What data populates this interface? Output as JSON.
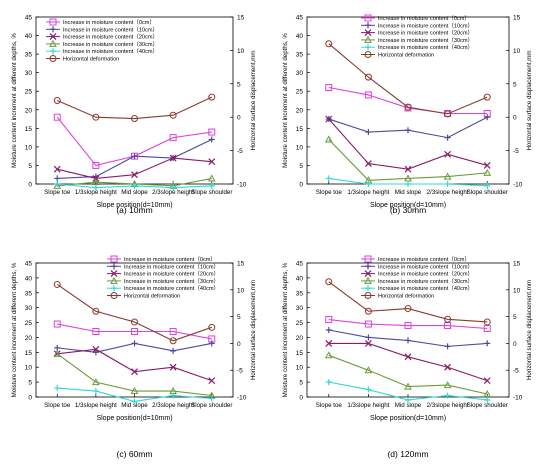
{
  "figure": {
    "series_style": [
      {
        "color": "#e040e0",
        "marker": "square"
      },
      {
        "color": "#4a4a9e",
        "marker": "cross"
      },
      {
        "color": "#8a1a6a",
        "marker": "x"
      },
      {
        "color": "#6a9a3a",
        "marker": "triangle"
      },
      {
        "color": "#30d8d8",
        "marker": "cross"
      },
      {
        "color": "#8a3a2a",
        "marker": "circle"
      }
    ]
  },
  "chart_data": [
    {
      "type": "line",
      "caption": "(a) 10mm",
      "xlabel": "Slope position(d=10mm)",
      "ylabel": "Moisture content increment at different depths, %",
      "y2label": "Horizontal surface displacement,mm",
      "categories": [
        "Slope toe",
        "1/3slope height",
        "Mid slope",
        "2/3slope height",
        "Slope shoulder"
      ],
      "ylim": [
        0,
        45
      ],
      "yticks": [
        0,
        5,
        10,
        15,
        20,
        25,
        30,
        35,
        40,
        45
      ],
      "y2lim": [
        -10,
        15
      ],
      "y2ticks": [
        -10,
        -5,
        0,
        5,
        10,
        15
      ],
      "legend_position": "top-left",
      "series": [
        {
          "name": "Increase in moisture content（0cm）",
          "axis": "left",
          "values": [
            18,
            5,
            7.5,
            12.5,
            14
          ]
        },
        {
          "name": "Increase in moisture content（10cm）",
          "axis": "left",
          "values": [
            1.5,
            2,
            7.5,
            7,
            12
          ]
        },
        {
          "name": "Increase in moisture content（20cm）",
          "axis": "left",
          "values": [
            4,
            1.5,
            2.5,
            7,
            6
          ]
        },
        {
          "name": "Increase in moisture content（30cm）",
          "axis": "left",
          "values": [
            -0.5,
            0.5,
            0,
            -0.5,
            1.5
          ]
        },
        {
          "name": "Increase in moisture content（40cm）",
          "axis": "left",
          "values": [
            0,
            -1,
            -0.5,
            -1,
            -0.5
          ]
        },
        {
          "name": "Horizontal deformation",
          "axis": "right",
          "values": [
            2.5,
            0,
            -0.2,
            0.3,
            3
          ]
        }
      ]
    },
    {
      "type": "line",
      "caption": "(b) 30mm",
      "xlabel": "Slope position(d=10mm)",
      "ylabel": "Moisture content increment at different depths, %",
      "y2label": "Horizontal surface displacement,mm",
      "categories": [
        "Slope toe",
        "1/3slope height",
        "Mid slope",
        "2/3slope height",
        "Slope shoulder"
      ],
      "ylim": [
        0,
        45
      ],
      "yticks": [
        0,
        5,
        10,
        15,
        20,
        25,
        30,
        35,
        40,
        45
      ],
      "y2lim": [
        -10,
        15
      ],
      "y2ticks": [
        -10,
        -5,
        0,
        5,
        10,
        15
      ],
      "legend_position": "top-right",
      "series": [
        {
          "name": "Increase in moisture content（0cm）",
          "axis": "left",
          "values": [
            26,
            24,
            20.5,
            19,
            19
          ]
        },
        {
          "name": "Increase in moisture content（10cm）",
          "axis": "left",
          "values": [
            17.5,
            14,
            14.5,
            12.5,
            18
          ]
        },
        {
          "name": "Increase in moisture content（20cm）",
          "axis": "left",
          "values": [
            17.5,
            5.5,
            4,
            8,
            5
          ]
        },
        {
          "name": "Increase in moisture content（30cm）",
          "axis": "left",
          "values": [
            12,
            1,
            1.5,
            2,
            3
          ]
        },
        {
          "name": "Increase in moisture content（40cm）",
          "axis": "left",
          "values": [
            1.5,
            0,
            0,
            0,
            -0.5
          ]
        },
        {
          "name": "Horizontal deformation",
          "axis": "right",
          "values": [
            11,
            6,
            1.5,
            0.5,
            3
          ]
        }
      ]
    },
    {
      "type": "line",
      "caption": "(c) 60mm",
      "xlabel": "Slope position(d=10mm)",
      "ylabel": "Moisture content increment at different depths, %",
      "y2label": "Horizontal surface displacement,mm",
      "categories": [
        "Slope toe",
        "1/3slope height",
        "Mid slope",
        "2/3slope height",
        "Slope shoulder"
      ],
      "ylim": [
        0,
        45
      ],
      "yticks": [
        0,
        5,
        10,
        15,
        20,
        25,
        30,
        35,
        40,
        45
      ],
      "y2lim": [
        -10,
        15
      ],
      "y2ticks": [
        -10,
        -5,
        0,
        5,
        10,
        15
      ],
      "legend_position": "top-right",
      "series": [
        {
          "name": "Increase in moisture content（0cm）",
          "axis": "left",
          "values": [
            24.5,
            22,
            22,
            22,
            19.5
          ]
        },
        {
          "name": "Increase in moisture content（10cm）",
          "axis": "left",
          "values": [
            16.5,
            15,
            18,
            15.5,
            18
          ]
        },
        {
          "name": "Increase in moisture content（20cm）",
          "axis": "left",
          "values": [
            14.5,
            16,
            8.5,
            10,
            5.5
          ]
        },
        {
          "name": "Increase in moisture content（30cm）",
          "axis": "left",
          "values": [
            14.5,
            5,
            2,
            2,
            0.5
          ]
        },
        {
          "name": "Increase in moisture content（40cm）",
          "axis": "left",
          "values": [
            3,
            2,
            -1.5,
            0.5,
            -0.5
          ]
        },
        {
          "name": "Horizontal deformation",
          "axis": "right",
          "values": [
            11,
            6,
            4,
            0.5,
            3
          ]
        }
      ]
    },
    {
      "type": "line",
      "caption": "(d) 120mm",
      "xlabel": "Slope position(d=10mm)",
      "ylabel": "Moisture content increment at different depths, %",
      "y2label": "Horizontal surface displacement,mm",
      "categories": [
        "Slope toe",
        "1/3slope height",
        "Mid slope",
        "2/3slope height",
        "Slope shoulder"
      ],
      "ylim": [
        0,
        45
      ],
      "yticks": [
        0,
        5,
        10,
        15,
        20,
        25,
        30,
        35,
        40,
        45
      ],
      "y2lim": [
        -10,
        15
      ],
      "y2ticks": [
        -10,
        -5,
        0,
        5,
        10,
        15
      ],
      "legend_position": "top-right",
      "series": [
        {
          "name": "Increase in moisture content（0cm）",
          "axis": "left",
          "values": [
            26,
            24.5,
            24,
            24,
            23
          ]
        },
        {
          "name": "Increase in moisture content（10cm）",
          "axis": "left",
          "values": [
            22.5,
            20,
            19,
            17,
            18
          ]
        },
        {
          "name": "Increase in moisture content（20cm）",
          "axis": "left",
          "values": [
            18,
            18,
            13.5,
            10,
            5.5
          ]
        },
        {
          "name": "Increase in moisture content（30cm）",
          "axis": "left",
          "values": [
            14,
            9,
            3.5,
            4,
            1
          ]
        },
        {
          "name": "Increase in moisture content（40cm）",
          "axis": "left",
          "values": [
            5,
            2.5,
            -1,
            0.5,
            -1
          ]
        },
        {
          "name": "Horizontal deformation",
          "axis": "right",
          "values": [
            11.5,
            6,
            6.5,
            4.5,
            4
          ]
        }
      ]
    }
  ]
}
